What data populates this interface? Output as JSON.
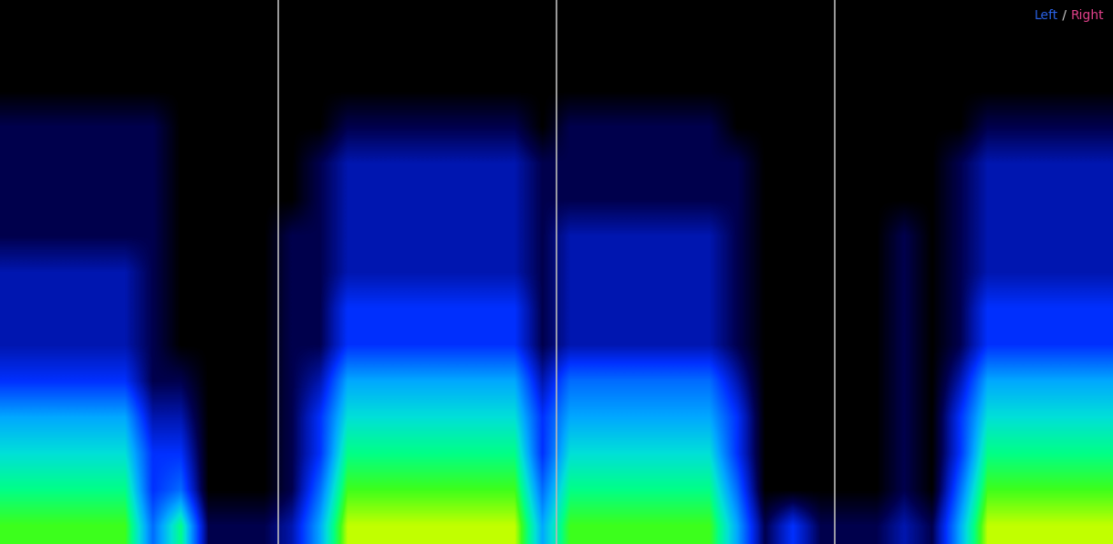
{
  "chart_data": {
    "type": "spectrogram",
    "tick_labels": false,
    "grid": false,
    "legend": "upper right",
    "annotations": [
      {
        "text": "Left",
        "color": "#2a62e6"
      },
      {
        "text": " / ",
        "color": "#d8d8d8"
      },
      {
        "text": "Right",
        "color": "#e0408a"
      }
    ],
    "time_markers": [
      10,
      20,
      30
    ],
    "color_range": [
      0,
      10
    ],
    "cells": [
      [
        8,
        8,
        8,
        8,
        8,
        4,
        7,
        1,
        1,
        1,
        2,
        5,
        9,
        9,
        9,
        9,
        9,
        9,
        9,
        5,
        8,
        8,
        8,
        8,
        8,
        8,
        5,
        1,
        3,
        1,
        1,
        1,
        2,
        1,
        5,
        9,
        9,
        9,
        9,
        9
      ],
      [
        7,
        7,
        7,
        7,
        7,
        3,
        4,
        0,
        0,
        0,
        1,
        4,
        8,
        8,
        8,
        8,
        8,
        8,
        8,
        4,
        7,
        7,
        7,
        7,
        7,
        7,
        4,
        0,
        0,
        0,
        0,
        0,
        1,
        0,
        4,
        8,
        8,
        8,
        8,
        8
      ],
      [
        6,
        6,
        6,
        6,
        6,
        3,
        3,
        0,
        0,
        0,
        1,
        3,
        7,
        7,
        7,
        7,
        7,
        7,
        7,
        3,
        6,
        6,
        6,
        6,
        6,
        6,
        3,
        0,
        0,
        0,
        0,
        0,
        1,
        0,
        3,
        7,
        7,
        7,
        7,
        7
      ],
      [
        5,
        5,
        5,
        5,
        5,
        2,
        2,
        0,
        0,
        0,
        1,
        3,
        6,
        6,
        6,
        6,
        6,
        6,
        6,
        3,
        5,
        5,
        5,
        5,
        5,
        5,
        3,
        0,
        0,
        0,
        0,
        0,
        1,
        0,
        3,
        6,
        6,
        6,
        6,
        6
      ],
      [
        3,
        3,
        3,
        3,
        3,
        1,
        1,
        0,
        0,
        0,
        1,
        2,
        5,
        5,
        5,
        5,
        5,
        5,
        5,
        2,
        4,
        4,
        4,
        4,
        4,
        4,
        2,
        0,
        0,
        0,
        0,
        0,
        1,
        0,
        2,
        5,
        5,
        5,
        5,
        5
      ],
      [
        2,
        2,
        2,
        2,
        2,
        1,
        0,
        0,
        0,
        0,
        1,
        1,
        3,
        3,
        3,
        3,
        3,
        3,
        3,
        1,
        2,
        2,
        2,
        2,
        2,
        2,
        1,
        0,
        0,
        0,
        0,
        0,
        1,
        0,
        1,
        3,
        3,
        3,
        3,
        3
      ],
      [
        2,
        2,
        2,
        2,
        2,
        1,
        0,
        0,
        0,
        0,
        1,
        1,
        3,
        3,
        3,
        3,
        3,
        3,
        3,
        1,
        2,
        2,
        2,
        2,
        2,
        2,
        1,
        0,
        0,
        0,
        0,
        0,
        1,
        0,
        1,
        3,
        3,
        3,
        3,
        3
      ],
      [
        2,
        2,
        2,
        2,
        2,
        1,
        0,
        0,
        0,
        0,
        1,
        1,
        2,
        2,
        2,
        2,
        2,
        2,
        2,
        1,
        2,
        2,
        2,
        2,
        2,
        2,
        1,
        0,
        0,
        0,
        0,
        0,
        1,
        0,
        1,
        2,
        2,
        2,
        2,
        2
      ],
      [
        1,
        1,
        1,
        1,
        1,
        1,
        0,
        0,
        0,
        0,
        1,
        1,
        2,
        2,
        2,
        2,
        2,
        2,
        2,
        1,
        2,
        2,
        2,
        2,
        2,
        2,
        1,
        0,
        0,
        0,
        0,
        0,
        1,
        0,
        1,
        2,
        2,
        2,
        2,
        2
      ],
      [
        1,
        1,
        1,
        1,
        1,
        1,
        0,
        0,
        0,
        0,
        0,
        1,
        2,
        2,
        2,
        2,
        2,
        2,
        2,
        1,
        1,
        1,
        1,
        1,
        1,
        1,
        1,
        0,
        0,
        0,
        0,
        0,
        0,
        0,
        1,
        2,
        2,
        2,
        2,
        2
      ],
      [
        1,
        1,
        1,
        1,
        1,
        1,
        0,
        0,
        0,
        0,
        0,
        1,
        2,
        2,
        2,
        2,
        2,
        2,
        2,
        1,
        1,
        1,
        1,
        1,
        1,
        1,
        1,
        0,
        0,
        0,
        0,
        0,
        0,
        0,
        1,
        2,
        2,
        2,
        2,
        2
      ],
      [
        1,
        1,
        1,
        1,
        1,
        1,
        0,
        0,
        0,
        0,
        0,
        0,
        1,
        1,
        1,
        1,
        1,
        1,
        1,
        0,
        1,
        1,
        1,
        1,
        1,
        1,
        0,
        0,
        0,
        0,
        0,
        0,
        0,
        0,
        0,
        1,
        1,
        1,
        1,
        1
      ],
      [
        0,
        0,
        0,
        0,
        0,
        0,
        0,
        0,
        0,
        0,
        0,
        0,
        0,
        0,
        0,
        0,
        0,
        0,
        0,
        0,
        0,
        0,
        0,
        0,
        0,
        0,
        0,
        0,
        0,
        0,
        0,
        0,
        0,
        0,
        0,
        0,
        0,
        0,
        0,
        0
      ],
      [
        0,
        0,
        0,
        0,
        0,
        0,
        0,
        0,
        0,
        0,
        0,
        0,
        0,
        0,
        0,
        0,
        0,
        0,
        0,
        0,
        0,
        0,
        0,
        0,
        0,
        0,
        0,
        0,
        0,
        0,
        0,
        0,
        0,
        0,
        0,
        0,
        0,
        0,
        0,
        0
      ],
      [
        0,
        0,
        0,
        0,
        0,
        0,
        0,
        0,
        0,
        0,
        0,
        0,
        0,
        0,
        0,
        0,
        0,
        0,
        0,
        0,
        0,
        0,
        0,
        0,
        0,
        0,
        0,
        0,
        0,
        0,
        0,
        0,
        0,
        0,
        0,
        0,
        0,
        0,
        0,
        0
      ]
    ]
  }
}
